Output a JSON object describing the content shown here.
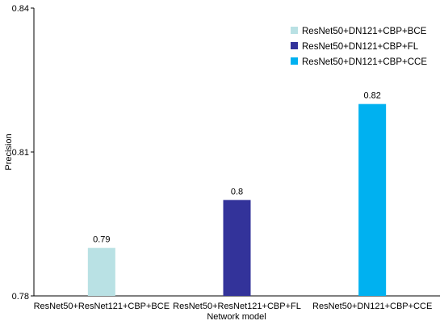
{
  "chart_data": {
    "type": "bar",
    "xlabel": "Network model",
    "ylabel": "Precision",
    "ylim": [
      0.78,
      0.84
    ],
    "yticks": [
      0.78,
      0.81,
      0.84
    ],
    "categories": [
      "ResNet50+ResNet121+CBP+BCE",
      "ResNet50+ResNet121+CBP+FL",
      "ResNet50+DN121+CBP+CCE"
    ],
    "values": [
      0.79,
      0.8,
      0.82
    ],
    "value_labels": [
      "0.79",
      "0.8",
      "0.82"
    ],
    "colors": [
      "#b9e1e4",
      "#33339a",
      "#00b1f0"
    ],
    "legend": {
      "position": "top-right",
      "entries": [
        "ResNet50+DN121+CBP+BCE",
        "ResNet50+DN121+CBP+FL",
        "ResNet50+DN121+CBP+CCE"
      ]
    },
    "grid": false
  }
}
